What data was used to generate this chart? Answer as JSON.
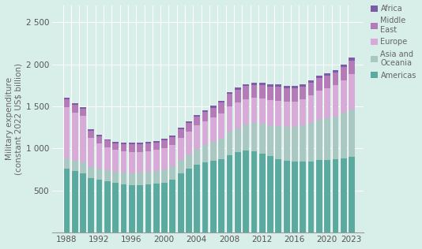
{
  "years": [
    1988,
    1989,
    1990,
    1991,
    1992,
    1993,
    1994,
    1995,
    1996,
    1997,
    1998,
    1999,
    2000,
    2001,
    2002,
    2003,
    2004,
    2005,
    2006,
    2007,
    2008,
    2009,
    2010,
    2011,
    2012,
    2013,
    2014,
    2015,
    2016,
    2017,
    2018,
    2019,
    2020,
    2021,
    2022,
    2023
  ],
  "americas": [
    760,
    730,
    705,
    650,
    630,
    610,
    590,
    575,
    565,
    565,
    570,
    580,
    590,
    625,
    700,
    755,
    805,
    835,
    855,
    870,
    920,
    955,
    975,
    965,
    935,
    905,
    875,
    855,
    840,
    840,
    845,
    865,
    865,
    870,
    880,
    895
  ],
  "asia_oceania": [
    120,
    120,
    125,
    125,
    130,
    130,
    130,
    135,
    140,
    145,
    150,
    150,
    155,
    160,
    165,
    175,
    190,
    205,
    220,
    245,
    275,
    285,
    310,
    335,
    355,
    370,
    390,
    400,
    415,
    430,
    455,
    475,
    490,
    510,
    540,
    565
  ],
  "europe": [
    610,
    575,
    555,
    350,
    295,
    270,
    260,
    255,
    255,
    250,
    248,
    250,
    255,
    258,
    263,
    268,
    278,
    283,
    290,
    300,
    308,
    308,
    302,
    302,
    302,
    300,
    300,
    298,
    298,
    312,
    328,
    348,
    362,
    368,
    388,
    425
  ],
  "middle_east": [
    95,
    90,
    90,
    88,
    88,
    82,
    82,
    88,
    88,
    88,
    88,
    90,
    93,
    93,
    96,
    100,
    105,
    112,
    118,
    128,
    142,
    148,
    152,
    152,
    158,
    162,
    168,
    162,
    158,
    152,
    152,
    152,
    148,
    152,
    158,
    162
  ],
  "africa": [
    18,
    18,
    18,
    18,
    18,
    18,
    18,
    18,
    18,
    18,
    18,
    18,
    18,
    20,
    20,
    21,
    21,
    22,
    23,
    24,
    25,
    25,
    26,
    26,
    27,
    27,
    27,
    27,
    28,
    28,
    29,
    29,
    30,
    30,
    33,
    38
  ],
  "colors": {
    "americas": "#5aaa9f",
    "asia_oceania": "#aac8c2",
    "europe": "#d8aad8",
    "middle_east": "#b57ab8",
    "africa": "#7a5ca8"
  },
  "background_color": "#d8eee8",
  "ylabel": "Military expenditure\n(constant 2022 US$ billion)",
  "ylim": [
    0,
    2700
  ],
  "yticks": [
    500,
    1000,
    1500,
    2000,
    2500
  ],
  "ytick_labels": [
    "500",
    "1 000",
    "1 500",
    "2 000",
    "2 500"
  ],
  "xtick_positions": [
    1988,
    1992,
    1996,
    2000,
    2004,
    2008,
    2012,
    2016,
    2020,
    2023
  ],
  "bar_width": 0.85
}
